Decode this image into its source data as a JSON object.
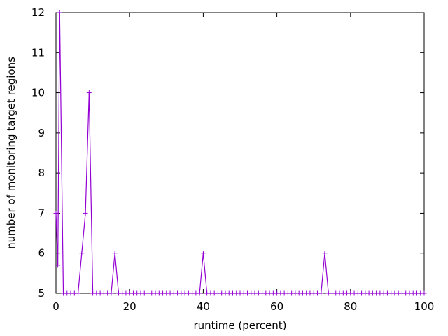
{
  "chart_data": {
    "type": "line",
    "xlabel": "runtime (percent)",
    "ylabel": "number of monitoring target regions",
    "xlim": [
      0,
      100
    ],
    "ylim": [
      5,
      12
    ],
    "xticks": [
      0,
      20,
      40,
      60,
      80,
      100
    ],
    "yticks": [
      5,
      6,
      7,
      8,
      9,
      10,
      11,
      12
    ],
    "grid": false,
    "legend": "none",
    "series": [
      {
        "color": "#9400d3",
        "marker": "plus",
        "x": [
          0,
          0.5,
          1,
          2,
          3,
          4,
          5,
          6,
          7,
          8,
          9,
          10,
          11,
          12,
          13,
          14,
          15,
          16,
          17,
          18,
          19,
          20,
          21,
          22,
          23,
          24,
          25,
          26,
          27,
          28,
          29,
          30,
          31,
          32,
          33,
          34,
          35,
          36,
          37,
          38,
          39,
          40,
          41,
          42,
          43,
          44,
          45,
          46,
          47,
          48,
          49,
          50,
          51,
          52,
          53,
          54,
          55,
          56,
          57,
          58,
          59,
          60,
          61,
          62,
          63,
          64,
          65,
          66,
          67,
          68,
          69,
          70,
          71,
          72,
          73,
          74,
          75,
          76,
          77,
          78,
          79,
          80,
          81,
          82,
          83,
          84,
          85,
          86,
          87,
          88,
          89,
          90,
          91,
          92,
          93,
          94,
          95,
          96,
          97,
          98,
          99,
          100
        ],
        "y": [
          7,
          5.7,
          12,
          5,
          5,
          5,
          5,
          5,
          6,
          7,
          10,
          5,
          5,
          5,
          5,
          5,
          5,
          6,
          5,
          5,
          5,
          5,
          5,
          5,
          5,
          5,
          5,
          5,
          5,
          5,
          5,
          5,
          5,
          5,
          5,
          5,
          5,
          5,
          5,
          5,
          5,
          6,
          5,
          5,
          5,
          5,
          5,
          5,
          5,
          5,
          5,
          5,
          5,
          5,
          5,
          5,
          5,
          5,
          5,
          5,
          5,
          5,
          5,
          5,
          5,
          5,
          5,
          5,
          5,
          5,
          5,
          5,
          5,
          5,
          6,
          5,
          5,
          5,
          5,
          5,
          5,
          5,
          5,
          5,
          5,
          5,
          5,
          5,
          5,
          5,
          5,
          5,
          5,
          5,
          5,
          5,
          5,
          5,
          5,
          5,
          5,
          5
        ]
      }
    ]
  }
}
